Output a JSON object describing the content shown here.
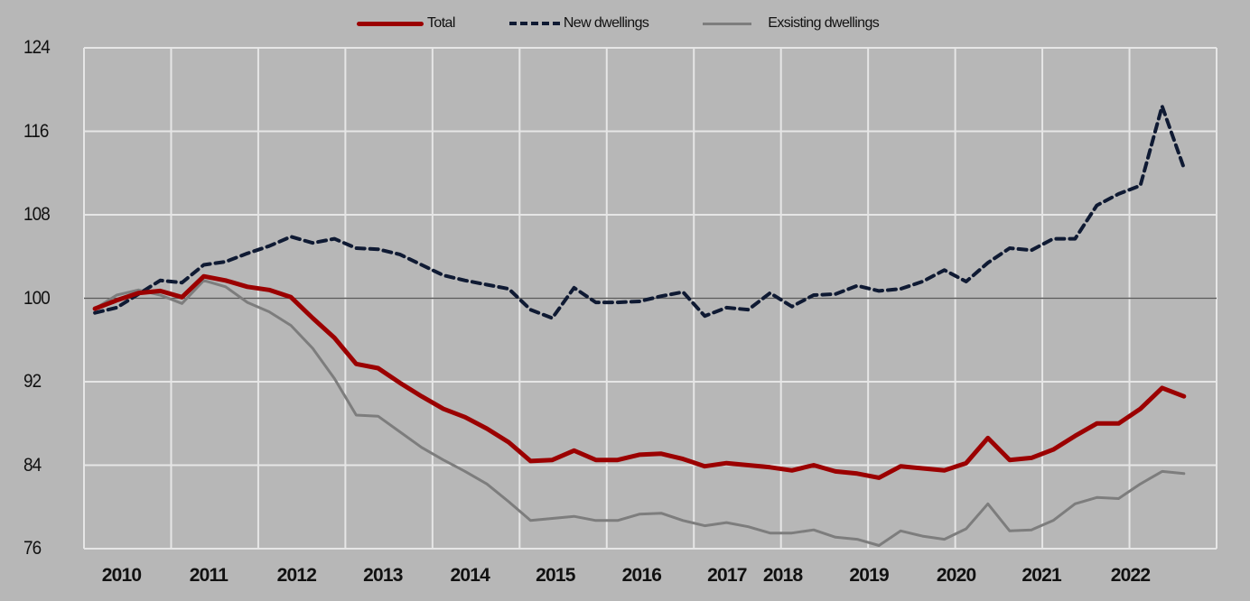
{
  "chart_data": {
    "type": "line",
    "title": "",
    "xlabel": "",
    "ylabel": "",
    "ylim": [
      76,
      124
    ],
    "yticks": [
      "124",
      "116",
      "108",
      "100",
      "92",
      "84",
      "76"
    ],
    "ytick_values": [
      124,
      116,
      108,
      100,
      92,
      84,
      76
    ],
    "reference_line": 100,
    "grid": true,
    "legend_position": "top-center",
    "x_frequency": "quarterly",
    "x_start": "2010 Q1",
    "x_end": "2022 Q3",
    "xtick_labels": [
      "2010",
      "2011",
      "2012",
      "2013",
      "2014",
      "2015",
      "2016",
      "2017",
      "2018",
      "2019",
      "2020",
      "2021",
      "2022"
    ],
    "series": [
      {
        "name": "Total",
        "style": "solid-thick",
        "color": "#9b0000",
        "values": [
          99.0,
          99.8,
          100.5,
          100.7,
          100.1,
          102.1,
          101.7,
          101.1,
          100.8,
          100.1,
          98.1,
          96.2,
          93.7,
          93.3,
          91.9,
          90.6,
          89.4,
          88.6,
          87.5,
          86.2,
          84.4,
          84.5,
          85.4,
          84.5,
          84.5,
          85.0,
          85.1,
          84.6,
          83.9,
          84.2,
          84.0,
          83.8,
          83.5,
          84.0,
          83.4,
          83.2,
          82.8,
          83.9,
          83.7,
          83.5,
          84.2,
          86.6,
          84.5,
          84.7,
          85.5,
          86.8,
          88.0,
          88.0,
          89.4,
          91.4,
          90.6
        ]
      },
      {
        "name": "New dwellings",
        "style": "dashed",
        "color": "#0f1a33",
        "values": [
          98.6,
          99.1,
          100.4,
          101.7,
          101.5,
          103.2,
          103.5,
          104.3,
          105.0,
          105.9,
          105.3,
          105.7,
          104.8,
          104.7,
          104.2,
          103.2,
          102.2,
          101.7,
          101.3,
          100.9,
          98.9,
          98.1,
          101.0,
          99.6,
          99.6,
          99.7,
          100.2,
          100.6,
          98.3,
          99.1,
          98.9,
          100.5,
          99.2,
          100.3,
          100.4,
          101.2,
          100.7,
          100.9,
          101.6,
          102.7,
          101.6,
          103.4,
          104.8,
          104.6,
          105.7,
          105.7,
          108.9,
          110.0,
          110.8,
          118.4,
          112.5
        ]
      },
      {
        "name": "Exsisting dwellings",
        "style": "solid-thin",
        "color": "#7d7d7d",
        "values": [
          99.0,
          100.3,
          100.8,
          100.3,
          99.5,
          101.7,
          101.1,
          99.6,
          98.7,
          97.4,
          95.2,
          92.3,
          88.8,
          88.7,
          87.2,
          85.7,
          84.5,
          83.4,
          82.2,
          80.5,
          78.7,
          78.9,
          79.1,
          78.7,
          78.7,
          79.3,
          79.4,
          78.7,
          78.2,
          78.5,
          78.1,
          77.5,
          77.5,
          77.8,
          77.1,
          76.9,
          76.3,
          77.7,
          77.2,
          76.9,
          77.9,
          80.3,
          77.7,
          77.8,
          78.7,
          80.3,
          80.9,
          80.8,
          82.2,
          83.4,
          83.2
        ]
      }
    ]
  },
  "colors": {
    "background": "#b7b7b7",
    "grid": "#e6e6e6",
    "reference_line": "#5a5a5a"
  }
}
